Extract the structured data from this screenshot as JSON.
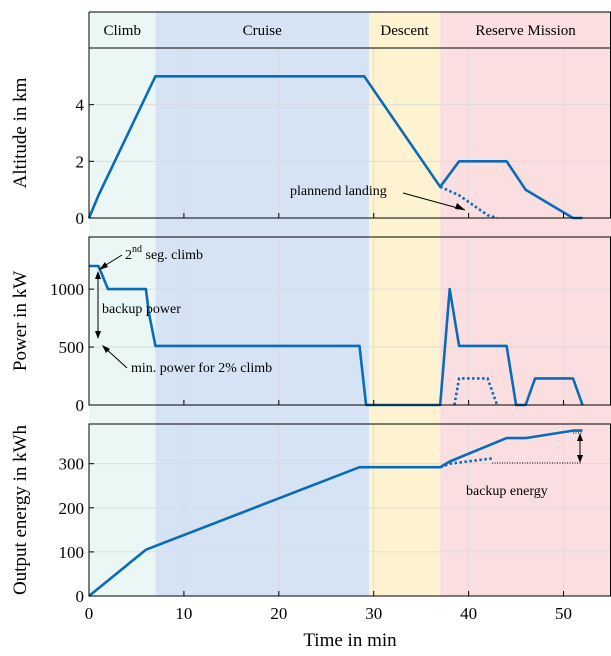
{
  "colors": {
    "series": "#0a6cb8",
    "climb": "#eaf7f5",
    "cruise": "#d6e3f4",
    "descent": "#fdf3d1",
    "reserve": "#fbdfe0"
  },
  "chart_data": {
    "type": "line",
    "xlabel": "Time in min",
    "xlim": [
      0,
      55
    ],
    "xticks": [
      "0",
      "10",
      "20",
      "30",
      "40",
      "50"
    ],
    "phases": [
      {
        "label": "Climb",
        "start": 0,
        "end": 7,
        "color": "#eaf7f5"
      },
      {
        "label": "Cruise",
        "start": 7,
        "end": 29.5,
        "color": "#d6e3f4"
      },
      {
        "label": "Descent",
        "start": 29.5,
        "end": 37,
        "color": "#fdf3d1"
      },
      {
        "label": "Reserve Mission",
        "start": 37,
        "end": 55,
        "color": "#fbdfe0"
      }
    ],
    "panels": [
      {
        "id": "altitude",
        "ylabel": "Altitude in km",
        "ylim": [
          0,
          6
        ],
        "yticks": [
          0,
          2,
          4
        ],
        "series": [
          {
            "style": "solid",
            "x": [
              0,
              1,
              7,
              29,
              37,
              39,
              44,
              46,
              51,
              52
            ],
            "y": [
              0,
              0.8,
              5,
              5,
              1.1,
              2,
              2,
              1,
              0,
              0
            ]
          },
          {
            "style": "dotted",
            "x": [
              37,
              39,
              42,
              43
            ],
            "y": [
              1.1,
              0.8,
              0.1,
              0
            ]
          }
        ],
        "annotations": [
          {
            "text": "plannend landing"
          }
        ]
      },
      {
        "id": "power",
        "ylabel": "Power in kW",
        "ylim": [
          0,
          1450
        ],
        "yticks": [
          0,
          500,
          1000
        ],
        "series": [
          {
            "style": "solid",
            "x": [
              0,
              1,
              2,
              6,
              6.3,
              7,
              28.5,
              29.2,
              37,
              38,
              39,
              44,
              45,
              46,
              47,
              51,
              52
            ],
            "y": [
              1200,
              1200,
              1000,
              1000,
              800,
              510,
              510,
              0,
              0,
              1000,
              510,
              510,
              0,
              0,
              230,
              230,
              0
            ]
          },
          {
            "style": "dotted",
            "x": [
              38.5,
              39,
              42,
              43
            ],
            "y": [
              0,
              230,
              230,
              0
            ]
          }
        ],
        "annotations": [
          {
            "text": "2",
            "sup": "nd",
            "rest": " seg. climb"
          },
          {
            "text": "backup power"
          },
          {
            "text": "min. power for 2% climb"
          }
        ]
      },
      {
        "id": "energy",
        "ylabel": "Output energy in kWh",
        "ylim": [
          0,
          390
        ],
        "yticks": [
          0,
          100,
          200,
          300
        ],
        "series": [
          {
            "style": "solid",
            "x": [
              0,
              6,
              28.5,
              37,
              38,
              44,
              46,
              51,
              52
            ],
            "y": [
              0,
              105,
              292,
              292,
              305,
              358,
              358,
              375,
              375
            ]
          },
          {
            "style": "dotted",
            "x": [
              37,
              38,
              42.5
            ],
            "y": [
              292,
              300,
              312
            ]
          }
        ],
        "annotations": [
          {
            "text": "backup energy"
          }
        ]
      }
    ]
  }
}
